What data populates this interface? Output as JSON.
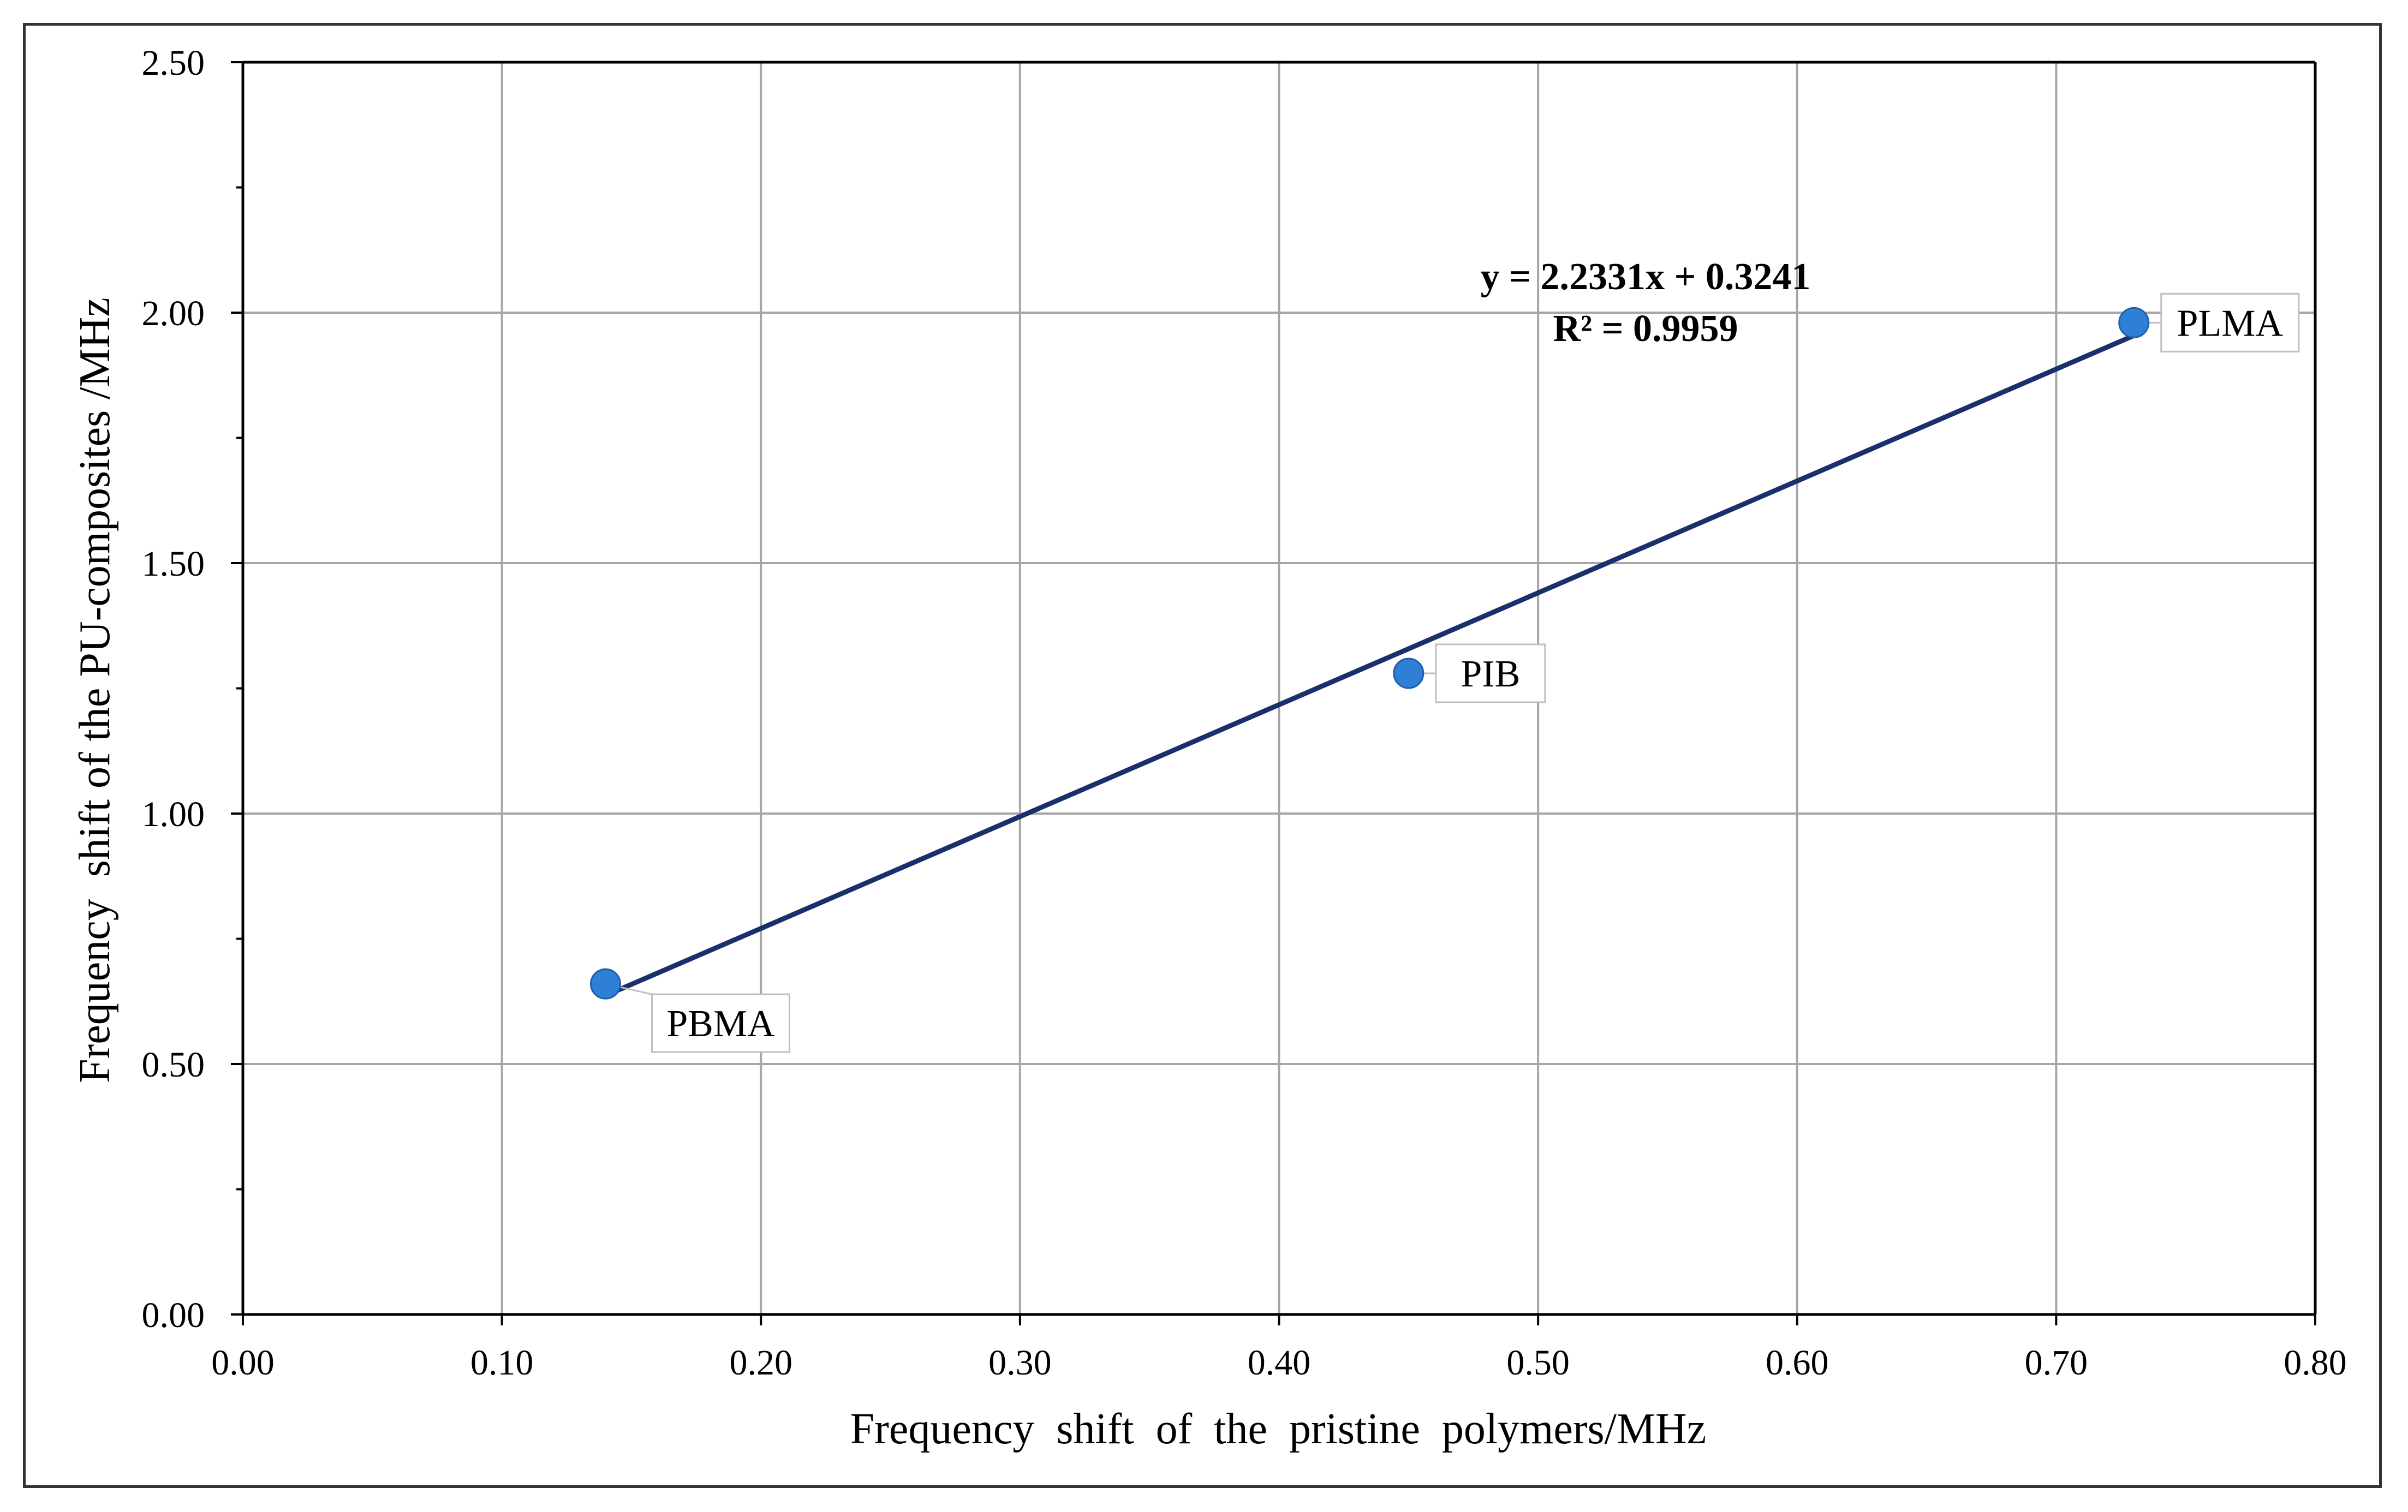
{
  "chart_data": {
    "type": "scatter",
    "title": "",
    "xlabel": "Frequency  shift  of  the  pristine  polymers/MHz",
    "ylabel": "Frequency  shift of the PU-composites /MHz",
    "xlim": [
      0.0,
      0.8
    ],
    "ylim": [
      0.0,
      2.5
    ],
    "xticks": [
      0.0,
      0.1,
      0.2,
      0.3,
      0.4,
      0.5,
      0.6,
      0.7,
      0.8
    ],
    "yticks": [
      0.0,
      0.5,
      1.0,
      1.5,
      2.0,
      2.5
    ],
    "xtick_labels": [
      "0.00",
      "0.10",
      "0.20",
      "0.30",
      "0.40",
      "0.50",
      "0.60",
      "0.70",
      "0.80"
    ],
    "ytick_labels": [
      "0.00",
      "0.50",
      "1.00",
      "1.50",
      "2.00",
      "2.50"
    ],
    "grid": true,
    "points": [
      {
        "label": "PBMA",
        "x": 0.14,
        "y": 0.66
      },
      {
        "label": "PIB",
        "x": 0.45,
        "y": 1.28
      },
      {
        "label": "PLMA",
        "x": 0.73,
        "y": 1.98
      }
    ],
    "trendline": {
      "type": "linear",
      "slope": 2.2331,
      "intercept": 0.3241,
      "x_range": [
        0.14,
        0.73
      ],
      "equation_label": "y = 2.2331x + 0.3241",
      "r2_label": "R² = 0.9959"
    },
    "colors": {
      "marker": "#2f7fd6",
      "trendline": "#1b2f6b",
      "grid": "#a6a6a6",
      "axis": "#000000"
    }
  }
}
